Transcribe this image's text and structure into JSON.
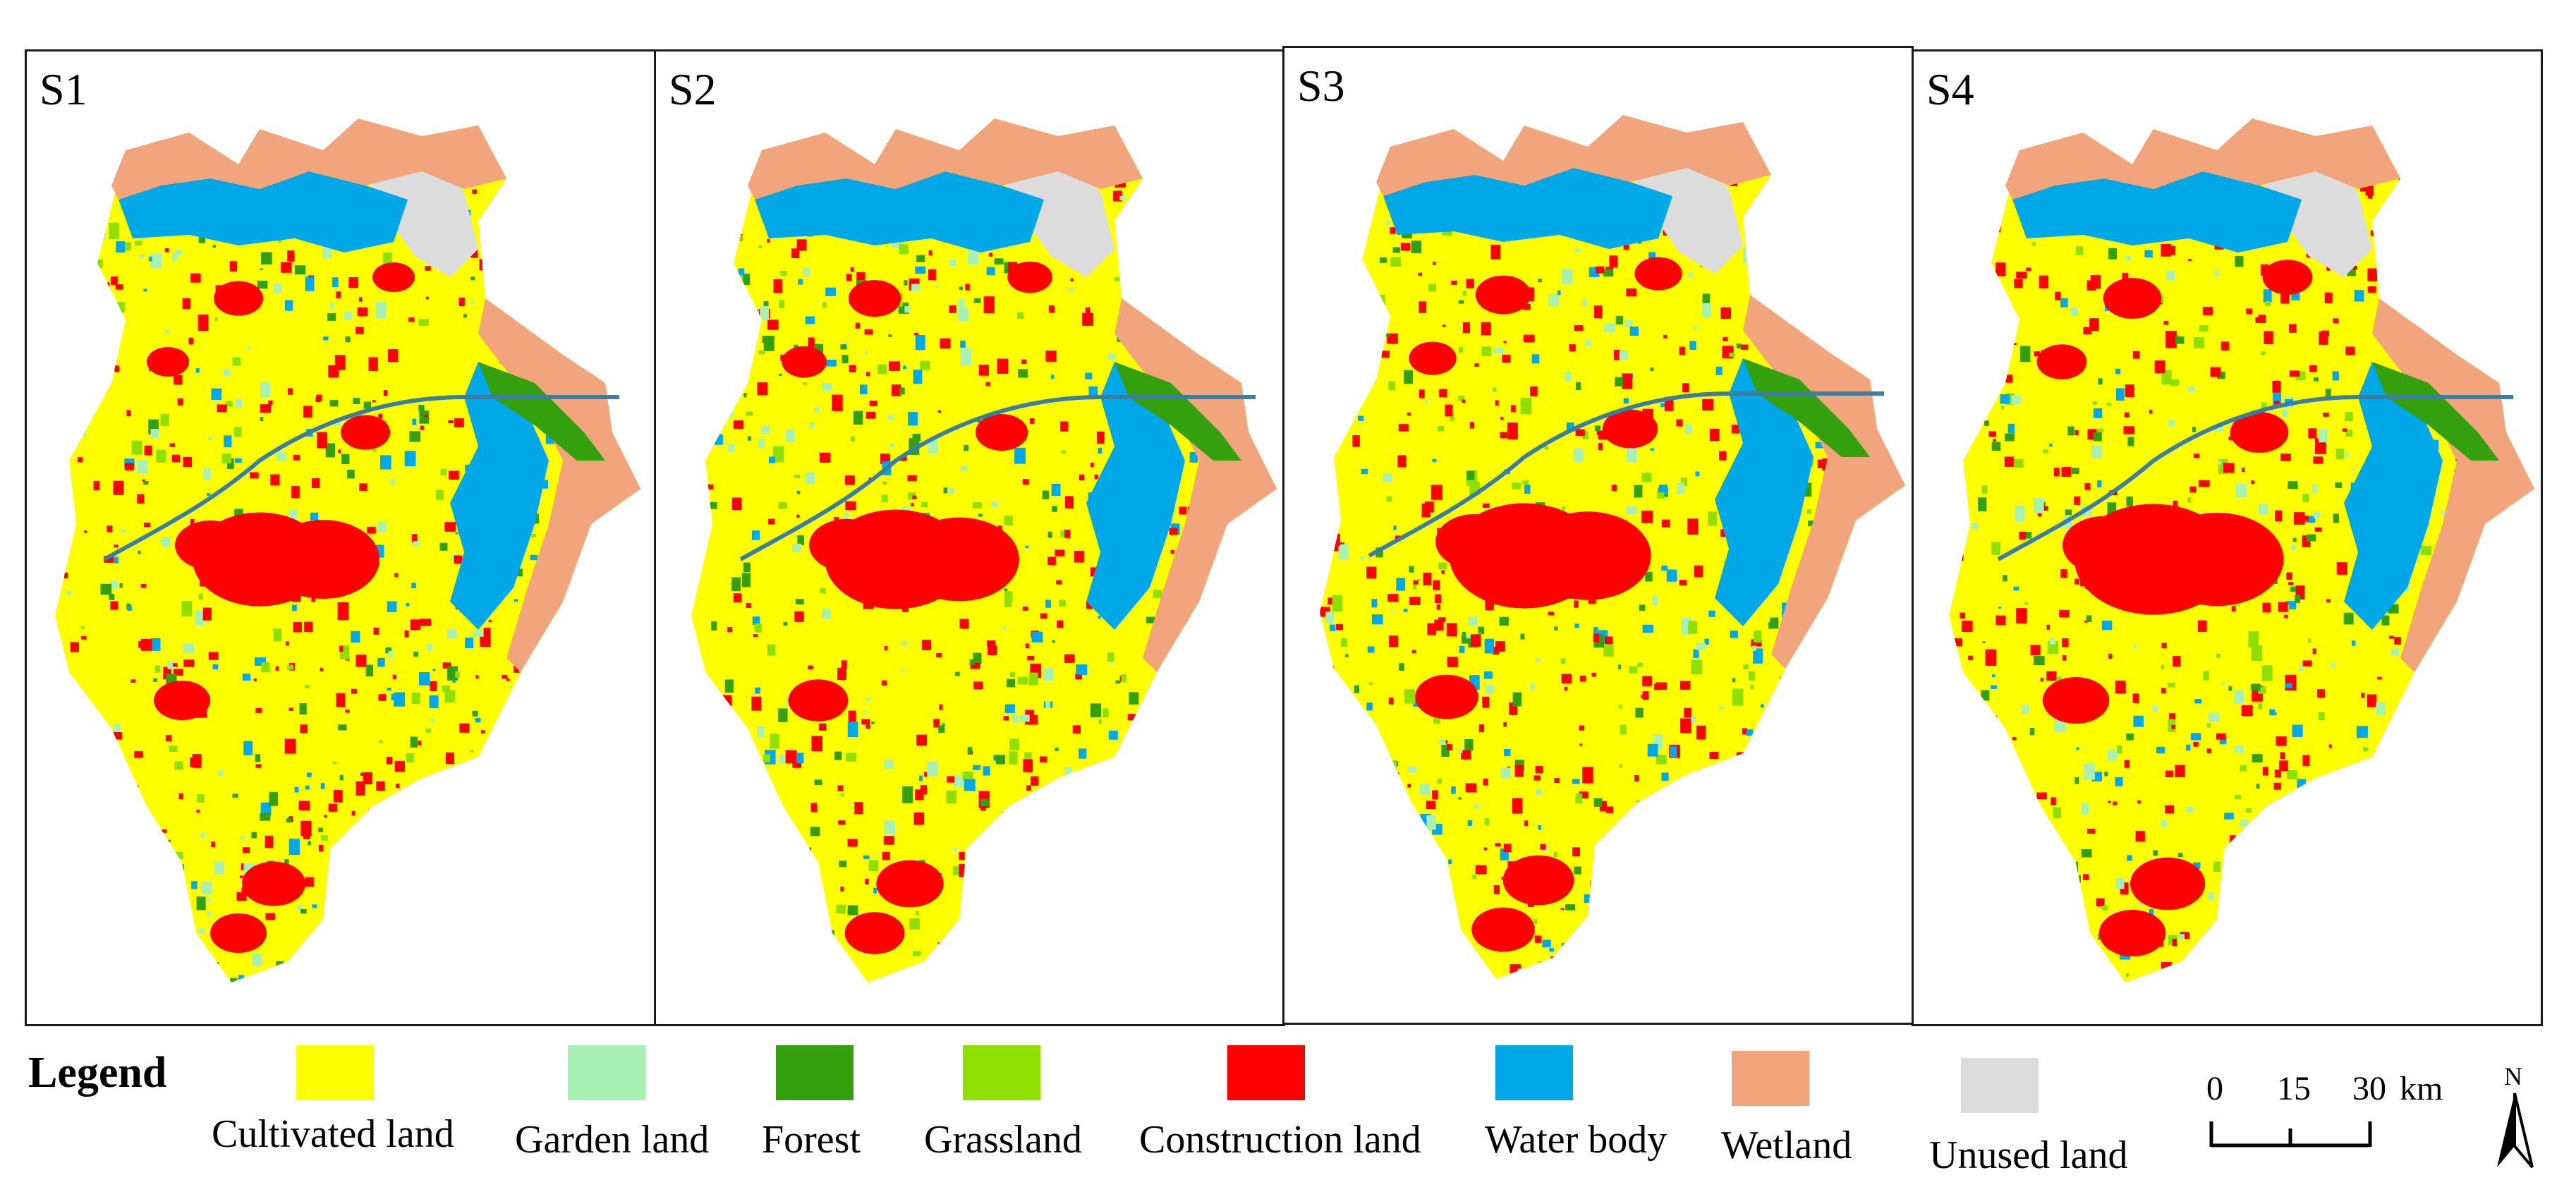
{
  "panels": [
    {
      "label": "S1"
    },
    {
      "label": "S2"
    },
    {
      "label": "S3"
    },
    {
      "label": "S4"
    }
  ],
  "legend": {
    "title": "Legend",
    "items": [
      {
        "label": "Cultivated land",
        "color": "#ffff00"
      },
      {
        "label": "Garden land",
        "color": "#a8f0b4"
      },
      {
        "label": "Forest",
        "color": "#35a00e"
      },
      {
        "label": "Grassland",
        "color": "#8fe000"
      },
      {
        "label": "Construction land",
        "color": "#ff0000"
      },
      {
        "label": "Water body",
        "color": "#00a8e8"
      },
      {
        "label": "Wetland",
        "color": "#f2a47c"
      },
      {
        "label": "Unused land",
        "color": "#dcdcdc"
      }
    ]
  },
  "scalebar": {
    "ticks": [
      "0",
      "15",
      "30"
    ],
    "unit": "km"
  },
  "north_arrow": {
    "label": "N"
  }
}
